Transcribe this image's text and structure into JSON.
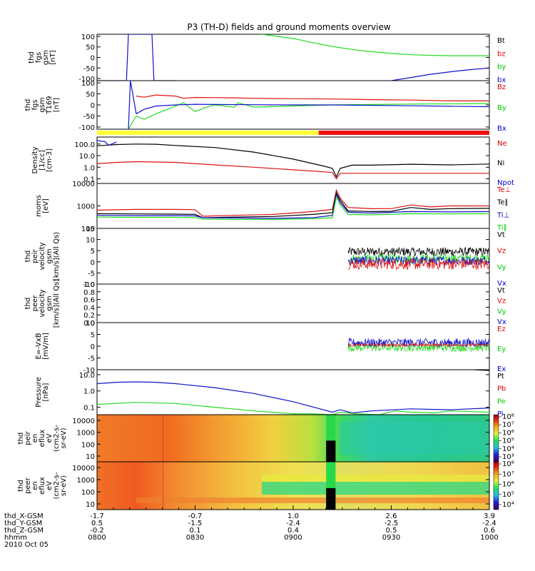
{
  "title": "P3 (TH-D) fields and ground moments overview",
  "chart_data": {
    "type": "line",
    "x_start": "0800",
    "x_end": "1000",
    "x_ticks": [
      "0800",
      "0830",
      "0900",
      "0930",
      "1000"
    ],
    "date_label": "2010 Oct 05",
    "orbit": {
      "rows": [
        {
          "label": "thd_X-GSM",
          "values": [
            "-1.7",
            "-0.7",
            "1.0",
            "2.6",
            "3.9"
          ]
        },
        {
          "label": "thd_Y-GSM",
          "values": [
            "0.5",
            "-1.5",
            "-2.4",
            "-2.5",
            "-2.4"
          ]
        },
        {
          "label": "thd_Z-GSM",
          "values": [
            "-0.2",
            "0.1",
            "0.4",
            "0.5",
            "0.6"
          ]
        },
        {
          "label": "hhmm",
          "values": [
            "0800",
            "0830",
            "0900",
            "0930",
            "1000"
          ]
        }
      ]
    },
    "bar_status": {
      "yellow_until": "0918",
      "red_from": "0918",
      "colors": [
        "#ffff33",
        "#ee1111"
      ]
    },
    "panels": [
      {
        "id": "fgs",
        "ylabel": [
          "thd",
          "fgs",
          "gsm",
          "[nT]"
        ],
        "scale": "linear",
        "ylim": [
          -110,
          110
        ],
        "ticks": [
          "100",
          "50",
          "0",
          "-50",
          "-100"
        ],
        "legend": [
          {
            "label": "Bt",
            "color": "#000000"
          },
          {
            "label": "bz",
            "color": "#dd0000"
          },
          {
            "label": "by",
            "color": "#00cc00"
          },
          {
            "label": "bx",
            "color": "#0000cc"
          }
        ],
        "series": [
          {
            "name": "by",
            "color": "#22dd22",
            "x": [
              0.0,
              0.42,
              0.5,
              0.55,
              0.6,
              0.65,
              0.7,
              0.75,
              0.8,
              0.85,
              0.9,
              0.95,
              1.0
            ],
            "y": [
              null,
              110,
              90,
              70,
              52,
              38,
              27,
              19,
              13,
              10,
              8,
              8,
              8
            ]
          },
          {
            "name": "bx",
            "color": "#1111cc",
            "x": [
              0.0,
              0.075,
              0.08,
              0.14,
              0.145,
              0.2,
              0.205,
              0.75,
              0.8,
              0.85,
              0.9,
              0.95,
              1.0
            ],
            "y": [
              -110,
              -110,
              110,
              110,
              -110,
              -110,
              null,
              -110,
              -95,
              -80,
              -68,
              -58,
              -50
            ]
          }
        ]
      },
      {
        "id": "fgs169",
        "ylabel": [
          "thd",
          "fgs",
          "gsm",
          "T169",
          "[nT]"
        ],
        "scale": "linear",
        "ylim": [
          -110,
          110
        ],
        "ticks": [
          "100",
          "50",
          "0",
          "-50",
          "-100"
        ],
        "legend": [
          {
            "label": "Bz",
            "color": "#dd0000"
          },
          {
            "label": "By",
            "color": "#00cc00"
          },
          {
            "label": "Bx",
            "color": "#0000cc"
          }
        ],
        "series": [
          {
            "name": "Bz",
            "color": "#dd1111",
            "x": [
              0.0,
              0.1,
              0.12,
              0.15,
              0.2,
              0.22,
              0.25,
              0.3,
              0.35,
              0.4,
              0.5,
              0.6,
              0.7,
              0.8,
              0.9,
              1.0
            ],
            "y": [
              null,
              40,
              35,
              45,
              40,
              30,
              34,
              33,
              32,
              30,
              28,
              27,
              24,
              22,
              18,
              18
            ]
          },
          {
            "name": "By",
            "color": "#22dd22",
            "x": [
              0.0,
              0.08,
              0.1,
              0.12,
              0.15,
              0.18,
              0.22,
              0.25,
              0.28,
              0.3,
              0.35,
              0.36,
              0.4,
              0.5,
              0.6,
              0.7,
              0.8,
              0.9,
              1.0
            ],
            "y": [
              null,
              -110,
              -50,
              -65,
              -40,
              -20,
              10,
              -30,
              -10,
              0,
              -10,
              10,
              -10,
              -5,
              0,
              2,
              4,
              5,
              6
            ]
          },
          {
            "name": "Bx",
            "color": "#1111cc",
            "x": [
              0.0,
              0.08,
              0.085,
              0.1,
              0.12,
              0.15,
              0.2,
              0.25,
              0.3,
              0.4,
              0.5,
              0.6,
              0.7,
              0.8,
              0.9,
              1.0
            ],
            "y": [
              null,
              -110,
              110,
              -40,
              -20,
              -5,
              0,
              3,
              2,
              1,
              0,
              0,
              -2,
              -4,
              -6,
              -8
            ]
          }
        ]
      },
      {
        "id": "density",
        "ylabel": [
          "Density",
          "[1/cc]",
          "[cm-3]"
        ],
        "scale": "log",
        "ylim": [
          0.04,
          400
        ],
        "ticks": [
          "100.0",
          "10.0",
          "1.0",
          "0.1"
        ],
        "tick_values": [
          100,
          10,
          1,
          0.1
        ],
        "legend": [
          {
            "label": "Ne",
            "color": "#dd0000"
          },
          {
            "label": "Ni",
            "color": "#000000"
          },
          {
            "label": "Npot",
            "color": "#0000cc"
          }
        ],
        "series": [
          {
            "name": "Ni",
            "color": "#000000",
            "x": [
              0.0,
              0.05,
              0.1,
              0.15,
              0.2,
              0.3,
              0.4,
              0.5,
              0.58,
              0.6,
              0.61,
              0.62,
              0.65,
              0.7,
              0.8,
              0.9,
              1.0
            ],
            "y": [
              70,
              90,
              100,
              95,
              75,
              50,
              20,
              5,
              1.2,
              0.8,
              0.15,
              0.8,
              1.5,
              1.5,
              1.8,
              1.6,
              1.9
            ]
          },
          {
            "name": "Ne",
            "color": "#dd1111",
            "x": [
              0.0,
              0.05,
              0.1,
              0.15,
              0.2,
              0.3,
              0.4,
              0.5,
              0.58,
              0.6,
              0.61,
              0.62,
              0.65,
              0.8,
              1.0
            ],
            "y": [
              2,
              2.6,
              3,
              2.8,
              2.6,
              1.6,
              1,
              0.6,
              0.4,
              0.35,
              0.1,
              0.3,
              0.3,
              0.3,
              0.3
            ]
          },
          {
            "name": "Npot",
            "color": "#1111cc",
            "x": [
              0.0,
              0.02,
              0.03,
              0.05
            ],
            "y": [
              200,
              160,
              80,
              150
            ]
          }
        ]
      },
      {
        "id": "moms_t",
        "ylabel": [
          "moms",
          "[eV]"
        ],
        "scale": "log",
        "ylim": [
          100,
          10000
        ],
        "ticks": [
          "10000",
          "1000",
          "100"
        ],
        "tick_values": [
          10000,
          1000,
          100
        ],
        "legend": [
          {
            "label": "Te⊥",
            "color": "#dd0000"
          },
          {
            "label": "Te∥",
            "color": "#000000"
          },
          {
            "label": "Ti⊥",
            "color": "#0000cc"
          },
          {
            "label": "Ti∥",
            "color": "#00cc00"
          }
        ],
        "series": [
          {
            "name": "Te⊥",
            "color": "#dd1111",
            "x": [
              0.0,
              0.1,
              0.2,
              0.25,
              0.27,
              0.35,
              0.45,
              0.55,
              0.6,
              0.61,
              0.62,
              0.64,
              0.7,
              0.75,
              0.8,
              0.85,
              0.9,
              1.0
            ],
            "y": [
              650,
              700,
              700,
              680,
              350,
              380,
              420,
              560,
              700,
              5000,
              2200,
              850,
              750,
              760,
              1100,
              900,
              1000,
              1000
            ]
          },
          {
            "name": "Te∥",
            "color": "#000000",
            "x": [
              0.0,
              0.1,
              0.2,
              0.25,
              0.27,
              0.35,
              0.45,
              0.55,
              0.6,
              0.61,
              0.62,
              0.64,
              0.7,
              0.75,
              0.8,
              0.85,
              0.9,
              1.0
            ],
            "y": [
              450,
              440,
              430,
              420,
              300,
              320,
              340,
              420,
              500,
              3800,
              1800,
              600,
              560,
              580,
              850,
              700,
              760,
              780
            ]
          },
          {
            "name": "Ti⊥",
            "color": "#1111cc",
            "x": [
              0.0,
              0.1,
              0.2,
              0.25,
              0.27,
              0.35,
              0.45,
              0.55,
              0.6,
              0.61,
              0.62,
              0.64,
              0.7,
              0.8,
              0.9,
              1.0
            ],
            "y": [
              380,
              370,
              370,
              360,
              300,
              290,
              280,
              300,
              380,
              3200,
              1400,
              520,
              480,
              560,
              540,
              560
            ]
          },
          {
            "name": "Ti∥",
            "color": "#22dd22",
            "x": [
              0.0,
              0.1,
              0.2,
              0.25,
              0.27,
              0.35,
              0.45,
              0.55,
              0.6,
              0.61,
              0.62,
              0.64,
              0.7,
              0.8,
              0.9,
              1.0
            ],
            "y": [
              320,
              310,
              310,
              300,
              260,
              250,
              250,
              270,
              300,
              2500,
              1100,
              420,
              400,
              450,
              440,
              450
            ]
          }
        ]
      },
      {
        "id": "peir_v",
        "ylabel": [
          "thd",
          "peir",
          "velocity",
          "gsm",
          "[km/s](All Qs)"
        ],
        "scale": "linear",
        "ylim": [
          -10,
          15
        ],
        "ticks": [
          "15",
          "10",
          "5",
          "0",
          "-5",
          "-10"
        ],
        "legend": [
          {
            "label": "Vt",
            "color": "#000000"
          },
          {
            "label": "Vz",
            "color": "#dd0000"
          },
          {
            "label": "Vy",
            "color": "#00cc00"
          },
          {
            "label": "Vx",
            "color": "#0000cc"
          }
        ],
        "noise": {
          "x_from": 0.64,
          "x_to": 1.0,
          "bands": [
            {
              "name": "Vt",
              "mean": 4.5,
              "amp": 2.0,
              "color": "#000000"
            },
            {
              "name": "Vy",
              "mean": 1.5,
              "amp": 2.0,
              "color": "#22dd22"
            },
            {
              "name": "Vx",
              "mean": 0.5,
              "amp": 2.0,
              "color": "#1111cc"
            },
            {
              "name": "Vz",
              "mean": -1.0,
              "amp": 2.5,
              "color": "#dd1111"
            }
          ]
        }
      },
      {
        "id": "peer_v",
        "ylabel": [
          "thd",
          "peer",
          "velocity",
          "gsm",
          "[km/s](All Qs)"
        ],
        "scale": "linear",
        "ylim": [
          0,
          1
        ],
        "ticks": [
          "1.0",
          "0.8",
          "0.6",
          "0.4",
          "0.2",
          "0.0"
        ],
        "legend": [
          {
            "label": "Vt",
            "color": "#000000"
          },
          {
            "label": "Vz",
            "color": "#dd0000"
          },
          {
            "label": "Vy",
            "color": "#00cc00"
          },
          {
            "label": "Vx",
            "color": "#0000cc"
          }
        ]
      },
      {
        "id": "efield",
        "ylabel": [
          "E=-VxB",
          "[mV/m]"
        ],
        "scale": "linear",
        "ylim": [
          -10,
          10
        ],
        "ticks": [
          "10",
          "5",
          "0",
          "-5",
          "-10"
        ],
        "legend": [
          {
            "label": "Ez",
            "color": "#dd0000"
          },
          {
            "label": "Ey",
            "color": "#00cc00"
          },
          {
            "label": "Ex",
            "color": "#0000cc"
          }
        ],
        "noise": {
          "x_from": 0.64,
          "x_to": 1.0,
          "bands": [
            {
              "name": "Ey",
              "mean": -0.5,
              "amp": 1.8,
              "color": "#22dd22"
            },
            {
              "name": "Ex",
              "mean": 1.5,
              "amp": 1.8,
              "color": "#1111cc"
            },
            {
              "name": "Ez",
              "mean": 0.5,
              "amp": 0.6,
              "color": "#dd1111"
            }
          ]
        }
      },
      {
        "id": "pressure",
        "ylabel": [
          "Pressure",
          "[nPa]"
        ],
        "scale": "log",
        "ylim": [
          0.035,
          20
        ],
        "ticks": [
          "10.0",
          "1.0",
          "0.1"
        ],
        "tick_values": [
          10,
          1,
          0.1
        ],
        "legend": [
          {
            "label": "Pt",
            "color": "#000000"
          },
          {
            "label": "Pb",
            "color": "#dd0000"
          },
          {
            "label": "Pe",
            "color": "#00cc00"
          },
          {
            "label": "Pi",
            "color": "#0000cc"
          }
        ],
        "series": [
          {
            "name": "Pi",
            "color": "#1111cc",
            "x": [
              0.0,
              0.05,
              0.1,
              0.15,
              0.2,
              0.3,
              0.4,
              0.5,
              0.6,
              0.62,
              0.65,
              0.7,
              0.8,
              0.9,
              1.0
            ],
            "y": [
              2.8,
              3.4,
              3.6,
              3.4,
              2.8,
              1.6,
              0.7,
              0.22,
              0.05,
              0.07,
              0.045,
              0.06,
              0.08,
              0.07,
              0.09
            ]
          },
          {
            "name": "Pe",
            "color": "#22dd22",
            "x": [
              0.0,
              0.1,
              0.2,
              0.3,
              0.4,
              0.5,
              0.55,
              0.6,
              0.62,
              0.66,
              0.72,
              0.76,
              0.8,
              0.86,
              0.9,
              1.0
            ],
            "y": [
              0.15,
              0.2,
              0.17,
              0.1,
              0.06,
              0.04,
              0.04,
              0.035,
              0.05,
              0.04,
              0.035,
              0.06,
              0.05,
              0.045,
              0.06,
              0.05
            ]
          },
          {
            "name": "Pt",
            "color": "#000000",
            "x": [
              0.96,
              1.0
            ],
            "y": [
              20,
              18
            ]
          }
        ]
      },
      {
        "id": "peir_spec",
        "type": "heatmap",
        "ylabel": [
          "thd",
          "peir",
          "en",
          "eflux",
          "eV",
          "(cm2-s-",
          "sr-eV)"
        ],
        "ticks": [
          "10000",
          "1000",
          "100",
          "10"
        ],
        "cbar_ticks": [
          "10⁸",
          "10⁷",
          "10⁶",
          "10⁵",
          "10⁴",
          "10³"
        ]
      },
      {
        "id": "peer_spec",
        "type": "heatmap",
        "ylabel": [
          "thd",
          "peer",
          "en",
          "eflux",
          "eV",
          "(cm2-s-",
          "sr-eV)"
        ],
        "ticks": [
          "10000",
          "1000",
          "100",
          "10"
        ],
        "cbar_ticks": [
          "10⁸",
          "10⁷",
          "10⁶",
          "10⁵",
          "10⁴"
        ]
      }
    ]
  }
}
